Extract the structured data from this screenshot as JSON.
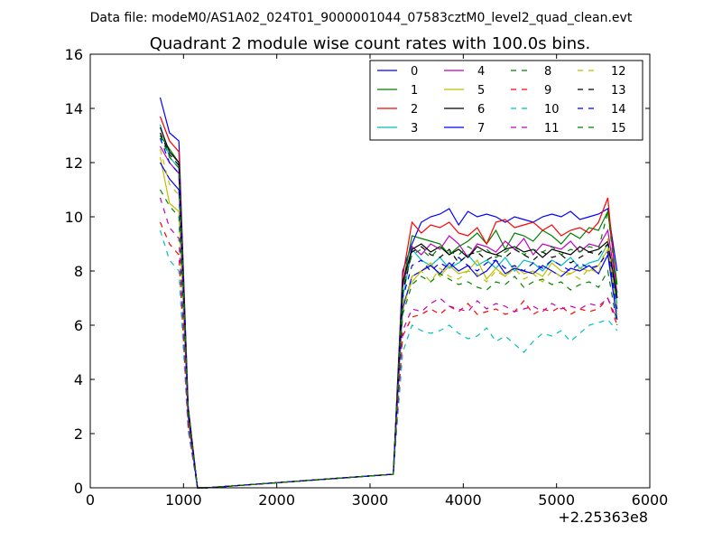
{
  "figure": {
    "suptitle": "Data file: modeM0/AS1A02_024T01_9000001044_07583cztM0_level2_quad_clean.evt",
    "title": "Quadrant 2 module wise count rates with 100.0s bins.",
    "x_offset_label": "+2.25363e8"
  },
  "chart_data": {
    "type": "line",
    "title": "Quadrant 2 module wise count rates with 100.0s bins.",
    "xlabel": "",
    "ylabel": "",
    "xlim": [
      0,
      6000
    ],
    "ylim": [
      0,
      16
    ],
    "x_ticks": [
      0,
      1000,
      2000,
      3000,
      4000,
      5000,
      6000
    ],
    "y_ticks": [
      0,
      2,
      4,
      6,
      8,
      10,
      12,
      14,
      16
    ],
    "x_tick_labels": [
      "0",
      "1000",
      "2000",
      "3000",
      "4000",
      "5000",
      "6000"
    ],
    "y_tick_labels": [
      "0",
      "2",
      "4",
      "6",
      "8",
      "10",
      "12",
      "14",
      "16"
    ],
    "grid": false,
    "legend_position": "top-right",
    "legend_columns": 4,
    "x": [
      750,
      850,
      950,
      1050,
      1150,
      1250,
      3250,
      3350,
      3450,
      3550,
      3650,
      3750,
      3850,
      3950,
      4050,
      4150,
      4250,
      4350,
      4450,
      4550,
      4650,
      4750,
      4850,
      4950,
      5050,
      5150,
      5250,
      5350,
      5450,
      5550,
      5650
    ],
    "series": [
      {
        "name": "0",
        "color": "#0000ff",
        "dash": "solid",
        "values": [
          14.4,
          13.1,
          12.8,
          3.0,
          0,
          0,
          0.5,
          8.0,
          9.0,
          9.8,
          10.0,
          10.1,
          10.3,
          9.7,
          10.2,
          10.0,
          10.1,
          10.0,
          9.8,
          10.0,
          9.9,
          9.8,
          10.0,
          10.1,
          10.0,
          10.2,
          9.9,
          10.0,
          10.1,
          10.3,
          8.0
        ]
      },
      {
        "name": "1",
        "color": "#008000",
        "dash": "solid",
        "values": [
          13.0,
          12.5,
          12.0,
          2.8,
          0,
          0,
          0.5,
          7.5,
          9.3,
          9.2,
          9.1,
          9.0,
          8.6,
          8.9,
          9.1,
          9.4,
          9.0,
          9.5,
          8.8,
          9.4,
          9.3,
          9.1,
          9.5,
          9.3,
          9.0,
          9.4,
          9.2,
          9.6,
          9.5,
          10.2,
          7.5
        ]
      },
      {
        "name": "2",
        "color": "#ff0000",
        "dash": "solid",
        "values": [
          13.7,
          12.8,
          12.4,
          3.0,
          0,
          0,
          0.5,
          7.8,
          9.8,
          9.4,
          9.7,
          9.6,
          9.8,
          9.4,
          9.3,
          9.6,
          9.0,
          9.8,
          9.9,
          9.6,
          9.7,
          9.8,
          9.5,
          9.7,
          9.3,
          9.5,
          9.6,
          9.4,
          9.8,
          10.7,
          7.0
        ]
      },
      {
        "name": "3",
        "color": "#00bfbf",
        "dash": "solid",
        "values": [
          13.4,
          12.2,
          11.8,
          2.9,
          0,
          0,
          0.5,
          7.0,
          8.8,
          8.4,
          8.2,
          8.5,
          8.1,
          8.3,
          8.6,
          8.2,
          8.4,
          8.1,
          8.5,
          8.0,
          8.4,
          8.3,
          8.0,
          8.4,
          8.2,
          8.5,
          8.1,
          8.3,
          8.4,
          9.0,
          6.8
        ]
      },
      {
        "name": "4",
        "color": "#bf00bf",
        "dash": "solid",
        "values": [
          12.6,
          12.0,
          11.6,
          2.8,
          0,
          0,
          0.5,
          7.4,
          8.9,
          8.6,
          9.0,
          8.8,
          9.3,
          9.0,
          8.5,
          9.0,
          8.9,
          8.7,
          9.1,
          8.8,
          9.2,
          8.6,
          9.0,
          8.9,
          8.8,
          9.1,
          8.7,
          9.0,
          8.9,
          9.5,
          7.2
        ]
      },
      {
        "name": "5",
        "color": "#bfbf00",
        "dash": "solid",
        "values": [
          12.2,
          10.5,
          10.2,
          2.5,
          0,
          0,
          0.5,
          6.8,
          7.6,
          8.0,
          8.3,
          7.8,
          8.2,
          7.9,
          8.0,
          8.4,
          7.7,
          8.1,
          7.8,
          8.2,
          7.9,
          8.0,
          7.8,
          8.3,
          8.0,
          7.9,
          8.1,
          8.0,
          8.2,
          8.8,
          6.5
        ]
      },
      {
        "name": "6",
        "color": "#000000",
        "dash": "solid",
        "values": [
          13.3,
          12.4,
          12.0,
          2.9,
          0,
          0,
          0.5,
          7.6,
          8.8,
          9.0,
          8.7,
          8.9,
          8.6,
          8.8,
          8.5,
          8.9,
          8.7,
          8.6,
          8.8,
          8.9,
          8.7,
          8.8,
          8.5,
          8.8,
          8.7,
          8.6,
          8.9,
          8.7,
          8.8,
          9.1,
          7.0
        ]
      },
      {
        "name": "7",
        "color": "#0000ff",
        "dash": "solid",
        "values": [
          12.0,
          11.4,
          11.0,
          2.7,
          0,
          0,
          0.5,
          6.6,
          7.8,
          8.0,
          8.2,
          7.9,
          8.3,
          8.0,
          8.2,
          7.8,
          8.0,
          8.4,
          7.9,
          8.1,
          8.0,
          7.9,
          8.2,
          8.0,
          7.8,
          8.1,
          8.0,
          8.2,
          7.9,
          8.6,
          6.2
        ]
      },
      {
        "name": "8",
        "color": "#008000",
        "dash": "dashed",
        "values": [
          11.0,
          10.4,
          10.0,
          2.5,
          0,
          0,
          0.5,
          6.4,
          7.5,
          7.8,
          7.6,
          7.9,
          7.7,
          7.5,
          7.6,
          7.4,
          7.3,
          7.6,
          7.5,
          7.8,
          7.4,
          7.6,
          7.7,
          7.5,
          7.6,
          7.3,
          7.5,
          7.6,
          7.4,
          8.0,
          6.0
        ]
      },
      {
        "name": "9",
        "color": "#ff0000",
        "dash": "dashed",
        "values": [
          9.8,
          9.0,
          8.6,
          2.2,
          0,
          0,
          0.5,
          5.6,
          6.3,
          6.4,
          6.6,
          6.4,
          6.7,
          6.5,
          6.8,
          6.4,
          6.5,
          6.6,
          6.4,
          6.5,
          6.9,
          6.4,
          6.6,
          6.5,
          6.7,
          6.4,
          6.6,
          6.5,
          6.6,
          7.0,
          6.0
        ]
      },
      {
        "name": "10",
        "color": "#00bfbf",
        "dash": "dashed",
        "values": [
          9.5,
          8.4,
          8.0,
          2.1,
          0,
          0,
          0.5,
          5.0,
          6.0,
          5.8,
          5.7,
          5.8,
          6.0,
          5.7,
          5.5,
          5.6,
          5.9,
          5.4,
          5.6,
          5.3,
          5.0,
          5.4,
          5.7,
          5.6,
          5.8,
          5.4,
          5.7,
          6.0,
          6.1,
          6.2,
          5.8
        ]
      },
      {
        "name": "11",
        "color": "#bf00bf",
        "dash": "dashed",
        "values": [
          10.7,
          9.6,
          9.2,
          2.3,
          0,
          0,
          0.5,
          5.8,
          6.6,
          6.5,
          6.8,
          7.0,
          6.7,
          6.6,
          6.5,
          6.9,
          6.6,
          6.8,
          6.7,
          6.5,
          6.6,
          6.7,
          6.5,
          6.8,
          6.6,
          6.7,
          6.6,
          6.8,
          6.7,
          7.0,
          6.2
        ]
      },
      {
        "name": "12",
        "color": "#bfbf00",
        "dash": "dashed",
        "values": [
          12.5,
          11.2,
          10.8,
          2.6,
          0,
          0,
          0.5,
          6.5,
          7.8,
          8.0,
          7.6,
          8.1,
          7.8,
          7.7,
          8.0,
          7.9,
          7.6,
          8.0,
          7.8,
          8.1,
          7.7,
          7.9,
          7.6,
          8.0,
          7.8,
          7.9,
          7.7,
          8.1,
          7.9,
          9.2,
          6.4
        ]
      },
      {
        "name": "13",
        "color": "#000000",
        "dash": "dashed",
        "values": [
          13.1,
          12.3,
          11.9,
          2.8,
          0,
          0,
          0.5,
          7.2,
          8.7,
          8.9,
          8.6,
          8.5,
          8.8,
          8.3,
          8.6,
          8.7,
          8.4,
          8.6,
          8.5,
          8.8,
          8.6,
          8.4,
          8.7,
          8.5,
          8.6,
          8.3,
          8.5,
          8.7,
          8.6,
          9.0,
          7.0
        ]
      },
      {
        "name": "14",
        "color": "#0000ff",
        "dash": "dashed",
        "values": [
          12.9,
          12.0,
          11.6,
          2.7,
          0,
          0,
          0.5,
          7.0,
          8.2,
          8.4,
          8.0,
          8.3,
          8.1,
          8.5,
          8.2,
          8.0,
          8.3,
          8.4,
          8.1,
          8.2,
          8.0,
          8.3,
          8.1,
          8.4,
          8.2,
          8.0,
          8.3,
          8.1,
          8.2,
          8.7,
          6.6
        ]
      },
      {
        "name": "15",
        "color": "#008000",
        "dash": "dashed",
        "values": [
          13.0,
          12.2,
          11.8,
          2.8,
          0,
          0,
          0.5,
          7.4,
          8.6,
          8.8,
          8.5,
          8.9,
          8.7,
          8.6,
          8.9,
          8.7,
          8.8,
          8.5,
          8.7,
          8.9,
          8.6,
          8.8,
          8.7,
          8.9,
          8.6,
          8.8,
          8.7,
          8.9,
          8.8,
          10.2,
          7.2
        ]
      }
    ]
  }
}
